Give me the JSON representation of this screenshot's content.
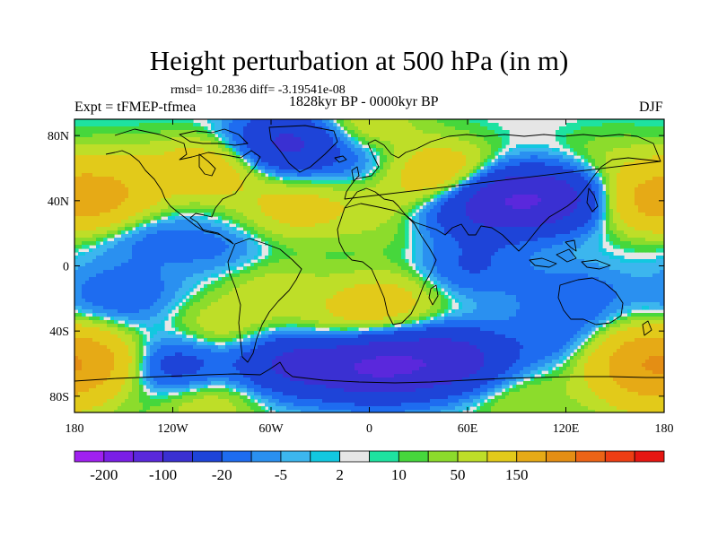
{
  "title": "Height perturbation at 500 hPa (in m)",
  "stats": "rmsd= 10.2836 diff= -3.19541e-08",
  "experiment": "Expt = tFMEP-tfmea",
  "period": "1828kyr BP - 0000kyr BP",
  "season": "DJF",
  "axes": {
    "lat_ticks": [
      {
        "value": 80,
        "label": "80N"
      },
      {
        "value": 40,
        "label": "40N"
      },
      {
        "value": 0,
        "label": "0"
      },
      {
        "value": -40,
        "label": "40S"
      },
      {
        "value": -80,
        "label": "80S"
      }
    ],
    "lon_ticks": [
      {
        "value": -180,
        "label": "180"
      },
      {
        "value": -120,
        "label": "120W"
      },
      {
        "value": -60,
        "label": "60W"
      },
      {
        "value": 0,
        "label": "0"
      },
      {
        "value": 60,
        "label": "60E"
      },
      {
        "value": 120,
        "label": "120E"
      },
      {
        "value": 180,
        "label": "180"
      }
    ]
  },
  "colorbar": {
    "colors": [
      "#a020f0",
      "#7a1fe6",
      "#5a28dc",
      "#3a30d2",
      "#1e44d8",
      "#1e6cf0",
      "#2a90f0",
      "#3cb6ee",
      "#12c8e0",
      "#e6e6e6",
      "#1ee2a0",
      "#46d73c",
      "#8cdc2c",
      "#bede28",
      "#e2ca1a",
      "#e6aa16",
      "#e48e14",
      "#ec6416",
      "#ee3e14",
      "#e61612"
    ],
    "labels": [
      {
        "text": "-200",
        "boundary": 1
      },
      {
        "text": "-100",
        "boundary": 3
      },
      {
        "text": "-20",
        "boundary": 5
      },
      {
        "text": "-5",
        "boundary": 7
      },
      {
        "text": "2",
        "boundary": 9
      },
      {
        "text": "10",
        "boundary": 11
      },
      {
        "text": "50",
        "boundary": 13
      },
      {
        "text": "150",
        "boundary": 15
      }
    ]
  },
  "field": {
    "lat_range": [
      -90,
      90
    ],
    "lon_range": [
      -180,
      180
    ],
    "features": [
      {
        "lon": -5,
        "lat": 85,
        "h": 22
      },
      {
        "lon": -160,
        "lat": 58,
        "h": 16
      },
      {
        "lon": -98,
        "lat": 60,
        "h": 38
      },
      {
        "lon": -45,
        "lat": 35,
        "h": 28
      },
      {
        "lon": 42,
        "lat": 57,
        "h": 45
      },
      {
        "lon": 10,
        "lat": 38,
        "h": 14
      },
      {
        "lon": 170,
        "lat": 40,
        "h": 50
      },
      {
        "lon": -160,
        "lat": 40,
        "h": 40
      },
      {
        "lon": 145,
        "lat": 62,
        "h": 12
      },
      {
        "lon": -50,
        "lat": 75,
        "h": -60
      },
      {
        "lon": 5,
        "lat": 62,
        "h": -16
      },
      {
        "lon": 85,
        "lat": 40,
        "h": -85
      },
      {
        "lon": 45,
        "lat": 30,
        "h": -22
      },
      {
        "lon": 120,
        "lat": 42,
        "h": -50
      },
      {
        "lon": -140,
        "lat": 22,
        "h": -16
      },
      {
        "lon": -90,
        "lat": 10,
        "h": -12
      },
      {
        "lon": -150,
        "lat": -18,
        "h": -18
      },
      {
        "lon": 30,
        "lat": 18,
        "h": 10
      },
      {
        "lon": 60,
        "lat": 0,
        "h": -22
      },
      {
        "lon": 125,
        "lat": -18,
        "h": -16
      },
      {
        "lon": -60,
        "lat": -12,
        "h": 14
      },
      {
        "lon": 10,
        "lat": -22,
        "h": 30
      },
      {
        "lon": -20,
        "lat": -38,
        "h": 16
      },
      {
        "lon": -90,
        "lat": -38,
        "h": 18
      },
      {
        "lon": 150,
        "lat": -50,
        "h": 15
      },
      {
        "lon": -175,
        "lat": -58,
        "h": 60
      },
      {
        "lon": 170,
        "lat": -62,
        "h": 45
      },
      {
        "lon": 5,
        "lat": -62,
        "h": -95
      },
      {
        "lon": -45,
        "lat": -60,
        "h": -60
      },
      {
        "lon": 50,
        "lat": -58,
        "h": -70
      },
      {
        "lon": 120,
        "lat": -45,
        "h": -20
      },
      {
        "lon": -120,
        "lat": -62,
        "h": -35
      },
      {
        "lon": 90,
        "lat": -80,
        "h": 12
      },
      {
        "lon": -100,
        "lat": -82,
        "h": 20
      },
      {
        "lon": 170,
        "lat": -82,
        "h": 18
      }
    ]
  }
}
